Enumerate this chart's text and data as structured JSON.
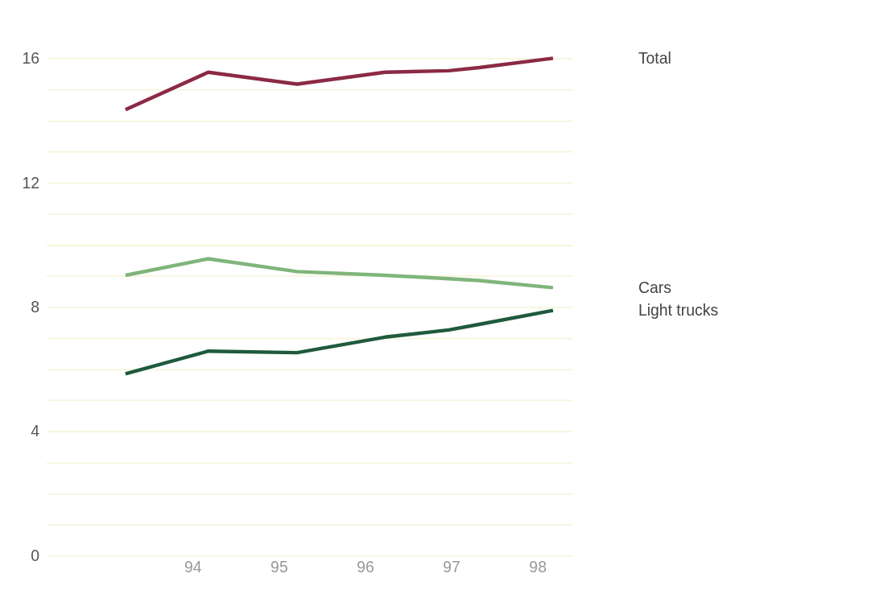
{
  "chart_data": {
    "type": "line",
    "x": [
      93.22,
      94.18,
      95.21,
      96.23,
      96.97,
      97.32,
      98.18
    ],
    "series": [
      {
        "name": "Total",
        "color": "#8b2a45",
        "values": [
          14.35,
          15.55,
          15.17,
          15.55,
          15.6,
          15.7,
          16.0
        ]
      },
      {
        "name": "Cars",
        "color": "#7fb57a",
        "values": [
          9.02,
          9.55,
          9.14,
          9.02,
          8.91,
          8.85,
          8.62
        ]
      },
      {
        "name": "Light trucks",
        "color": "#1f5a3c",
        "values": [
          5.85,
          6.58,
          6.53,
          7.03,
          7.26,
          7.44,
          7.89
        ]
      }
    ],
    "xlim": [
      92.3,
      98.4
    ],
    "xticks": [
      94,
      95,
      96,
      97,
      98
    ],
    "ylim": [
      0,
      16
    ],
    "yticks": [
      0,
      {
        "value": 1,
        "label": null
      },
      {
        "value": 2,
        "label": null
      },
      {
        "value": 3,
        "label": null
      },
      4,
      {
        "value": 5,
        "label": null
      },
      {
        "value": 6,
        "label": null
      },
      {
        "value": 7,
        "label": null
      },
      8,
      {
        "value": 9,
        "label": null
      },
      {
        "value": 10,
        "label": null
      },
      {
        "value": 11,
        "label": null
      },
      12,
      {
        "value": 13,
        "label": null
      },
      {
        "value": 14,
        "label": null
      },
      {
        "value": 15,
        "label": null
      },
      16
    ],
    "grid": "y",
    "legend": false,
    "marker": "none",
    "line_style": "solid"
  }
}
